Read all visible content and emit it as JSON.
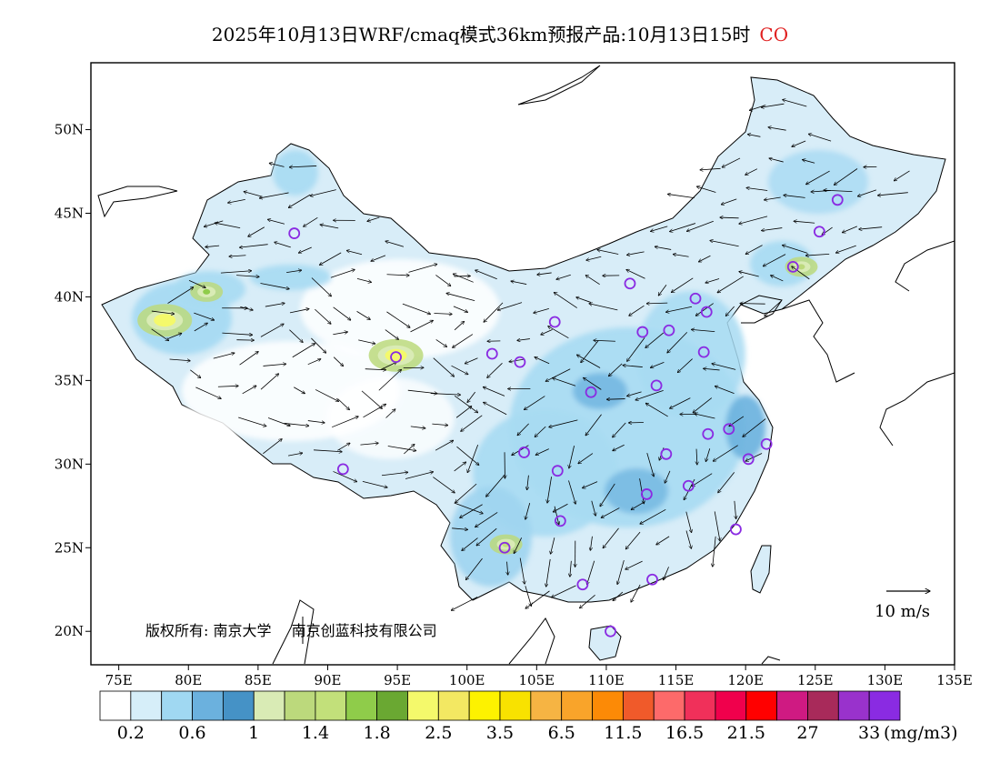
{
  "title": {
    "main": "2025年10月13日WRF/cmaq模式36km预报产品:10月13日15时",
    "pollutant": "CO"
  },
  "map": {
    "lon_ticks": [
      "75E",
      "80E",
      "85E",
      "90E",
      "95E",
      "100E",
      "105E",
      "110E",
      "115E",
      "120E",
      "125E",
      "130E",
      "135E"
    ],
    "lat_ticks": [
      "20N",
      "25N",
      "30N",
      "35N",
      "40N",
      "45N",
      "50N"
    ],
    "lon_range": [
      73,
      135
    ],
    "lat_range": [
      18,
      54
    ],
    "copyright_left": "版权所有: 南京大学",
    "copyright_right": "南京创蓝科技有限公司",
    "wind_reference": "10 m/s"
  },
  "colorbar": {
    "colors": [
      "#ffffff",
      "#d6eef9",
      "#a0d8f2",
      "#6bb1de",
      "#4592c6",
      "#d9ebb5",
      "#bcd97c",
      "#c2e07a",
      "#8fcc4a",
      "#6aa832",
      "#f4f96b",
      "#f3e862",
      "#fdf200",
      "#f8e200",
      "#f6b443",
      "#f9a42a",
      "#fc8a06",
      "#f05a2a",
      "#fd6a6a",
      "#f0305a",
      "#f0004c",
      "#ff0000",
      "#cf1a82",
      "#a82a5a",
      "#9932cc",
      "#8a2be2"
    ],
    "labels": [
      "0.2",
      "0.6",
      "1",
      "1.4",
      "1.8",
      "2.5",
      "3.5",
      "6.5",
      "11.5",
      "16.5",
      "21.5",
      "27",
      "33"
    ],
    "unit": "(mg/m3)"
  },
  "stations": [
    [
      87.6,
      43.8
    ],
    [
      91.1,
      29.7
    ],
    [
      94.9,
      36.4
    ],
    [
      101.8,
      36.6
    ],
    [
      103.8,
      36.1
    ],
    [
      106.3,
      38.5
    ],
    [
      111.7,
      40.8
    ],
    [
      112.6,
      37.9
    ],
    [
      114.5,
      38.0
    ],
    [
      116.4,
      39.9
    ],
    [
      117.2,
      39.1
    ],
    [
      113.6,
      34.7
    ],
    [
      117.0,
      36.7
    ],
    [
      108.9,
      34.3
    ],
    [
      104.1,
      30.7
    ],
    [
      106.5,
      29.6
    ],
    [
      114.3,
      30.6
    ],
    [
      117.3,
      31.8
    ],
    [
      118.8,
      32.1
    ],
    [
      121.5,
      31.2
    ],
    [
      120.2,
      30.3
    ],
    [
      112.9,
      28.2
    ],
    [
      115.9,
      28.7
    ],
    [
      119.3,
      26.1
    ],
    [
      106.7,
      26.6
    ],
    [
      102.7,
      25.0
    ],
    [
      108.3,
      22.8
    ],
    [
      113.3,
      23.1
    ],
    [
      110.3,
      20.0
    ],
    [
      123.4,
      41.8
    ],
    [
      125.3,
      43.9
    ],
    [
      126.6,
      45.8
    ]
  ],
  "plumes": [
    {
      "lon": 78.3,
      "lat": 38.6,
      "level": 10
    },
    {
      "lon": 81.3,
      "lat": 40.3,
      "level": 8
    },
    {
      "lon": 94.9,
      "lat": 36.5,
      "level": 10
    },
    {
      "lon": 102.8,
      "lat": 25.2,
      "level": 7
    },
    {
      "lon": 124.0,
      "lat": 41.8,
      "level": 6
    }
  ]
}
